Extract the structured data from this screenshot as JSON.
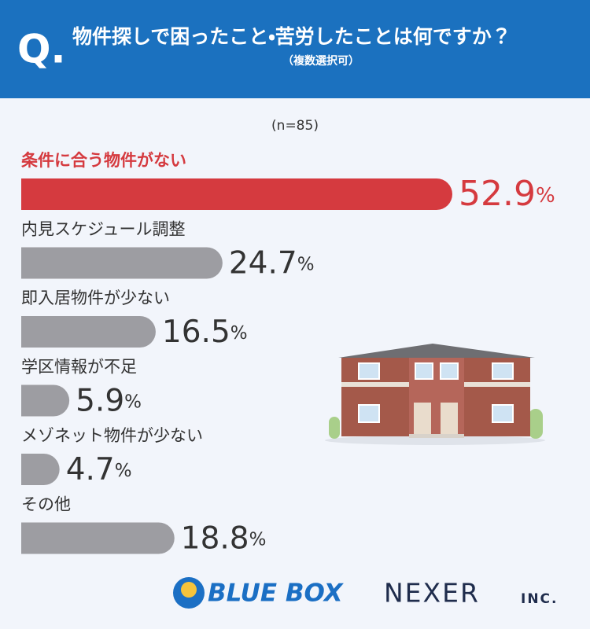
{
  "header": {
    "mark": "Q.",
    "title": "物件探しで困ったこと・苦労したことは何ですか？",
    "subtitle": "（複数選択可）"
  },
  "chart_data": {
    "type": "bar",
    "orientation": "horizontal",
    "note": "(n=85)",
    "categories": [
      "条件に合う物件がない",
      "内見スケジュール調整",
      "即入居物件が少ない",
      "学区情報が不足",
      "メゾネット物件が少ない",
      "その他"
    ],
    "values": [
      52.9,
      24.7,
      16.5,
      5.9,
      4.7,
      18.8
    ],
    "value_labels": [
      "52.9%",
      "24.7%",
      "16.5%",
      "5.9%",
      "4.7%",
      "18.8%"
    ],
    "colors": [
      "#d53a3f",
      "#9d9da2",
      "#9d9da2",
      "#9d9da2",
      "#9d9da2",
      "#9d9da2"
    ]
  },
  "footer": {
    "logo1": "BLUE BOX",
    "logo2": "NEXER",
    "logo2_suffix": "INC."
  }
}
